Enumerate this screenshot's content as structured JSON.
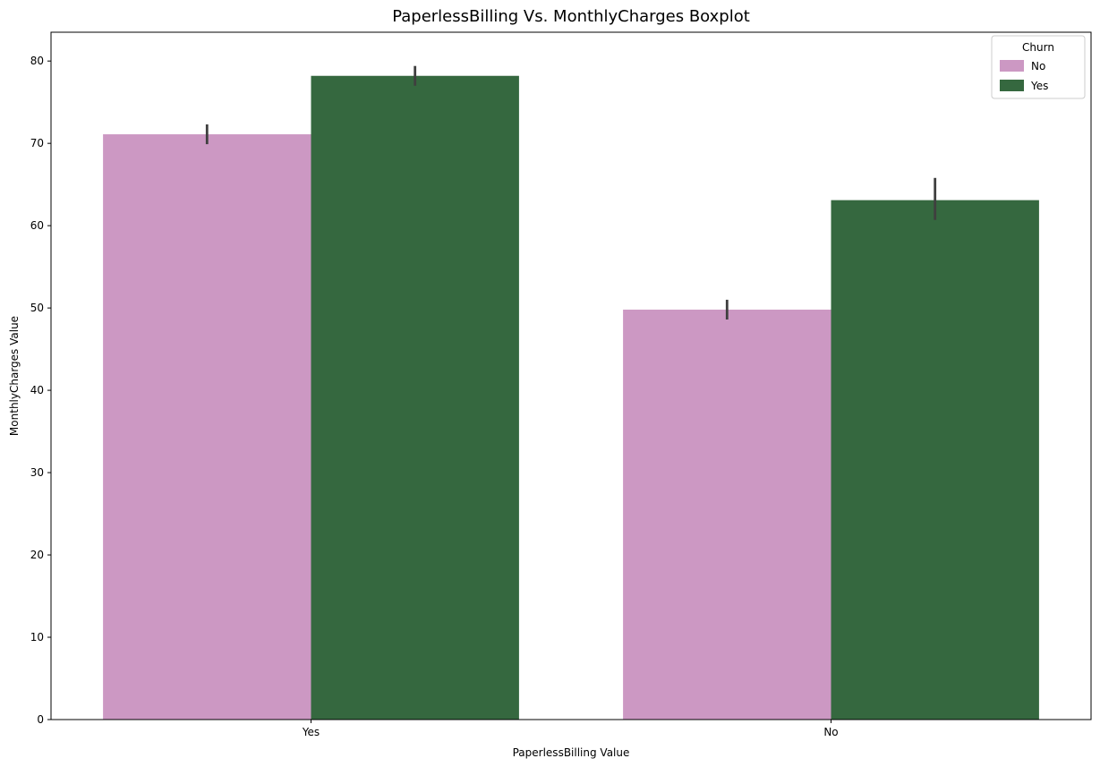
{
  "chart_data": {
    "type": "bar",
    "title": "PaperlessBilling Vs. MonthlyCharges Boxplot",
    "xlabel": "PaperlessBilling Value",
    "ylabel": "MonthlyCharges Value",
    "categories": [
      "Yes",
      "No"
    ],
    "series": [
      {
        "name": "No",
        "color": "#cc98c3",
        "values": [
          71.1,
          49.8
        ],
        "ci": [
          [
            69.9,
            72.3
          ],
          [
            48.6,
            51.0
          ]
        ]
      },
      {
        "name": "Yes",
        "color": "#35683f",
        "values": [
          78.2,
          63.1
        ],
        "ci": [
          [
            77.0,
            79.4
          ],
          [
            60.7,
            65.8
          ]
        ]
      }
    ],
    "ylim": [
      0,
      83.5
    ],
    "yticks": [
      0,
      10,
      20,
      30,
      40,
      50,
      60,
      70,
      80
    ],
    "legend": {
      "title": "Churn",
      "placement": "top-right"
    },
    "grid": false,
    "error_bar_color": "#3f3f3f"
  }
}
